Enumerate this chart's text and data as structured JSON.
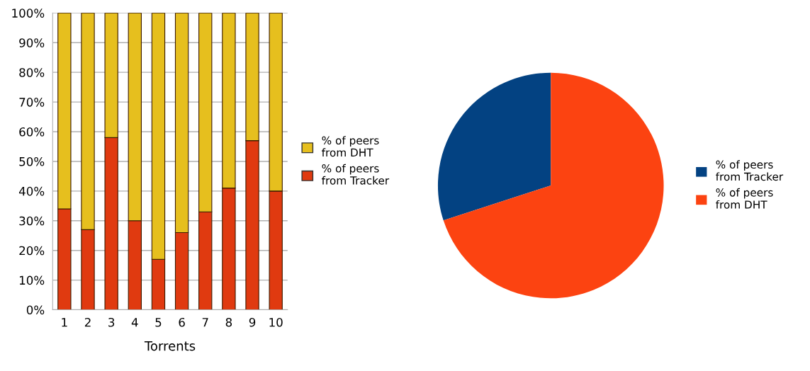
{
  "chart_data": [
    {
      "type": "bar",
      "xlabel": "Torrents",
      "categories": [
        "1",
        "2",
        "3",
        "4",
        "5",
        "6",
        "7",
        "8",
        "9",
        "10"
      ],
      "stacked": true,
      "series": [
        {
          "name": "% of peers from Tracker",
          "color": "#e03a10",
          "values": [
            34,
            27,
            58,
            30,
            17,
            26,
            33,
            41,
            57,
            40
          ]
        },
        {
          "name": "% of peers from DHT",
          "color": "#e6bf1e",
          "values": [
            66,
            73,
            42,
            70,
            83,
            74,
            67,
            59,
            43,
            60
          ]
        }
      ],
      "ylim": [
        0,
        100
      ],
      "yticks": [
        {
          "value": 0,
          "label": "0%"
        },
        {
          "value": 10,
          "label": "10%"
        },
        {
          "value": 20,
          "label": "20%"
        },
        {
          "value": 30,
          "label": "30%"
        },
        {
          "value": 40,
          "label": "40%"
        },
        {
          "value": 50,
          "label": "50%"
        },
        {
          "value": 60,
          "label": "60%"
        },
        {
          "value": 70,
          "label": "70%"
        },
        {
          "value": 80,
          "label": "80%"
        },
        {
          "value": 90,
          "label": "90%"
        },
        {
          "value": 100,
          "label": "100%"
        }
      ],
      "grid": "y",
      "legend": "right"
    },
    {
      "type": "pie",
      "categories": [
        "% of peers from Tracker",
        "% of peers from DHT"
      ],
      "values": [
        30,
        70
      ],
      "colors": [
        "#034282",
        "#fc4311"
      ],
      "legend": "right"
    }
  ]
}
